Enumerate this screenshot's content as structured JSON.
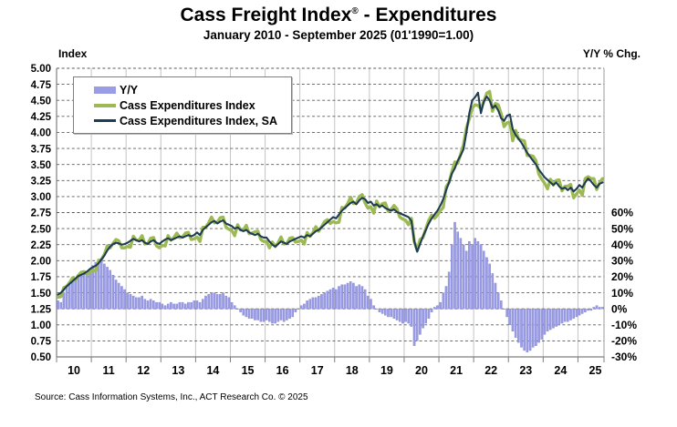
{
  "title": {
    "main": "Cass Freight Index",
    "reg": "®",
    "rest": " - Expenditures"
  },
  "subtitle": "January 2010 - September 2025 (01'1990=1.00)",
  "left_axis_corner_label": "Index",
  "right_axis_corner_label": "Y/Y % Chg.",
  "source": "Source: Cass Information Systems, Inc., ACT Research Co. © 2025",
  "legend": {
    "items": [
      {
        "label": "Y/Y",
        "type": "bar",
        "color": "#9a9ce6"
      },
      {
        "label": "Cass Expenditures Index",
        "type": "line",
        "color": "#9cb953"
      },
      {
        "label": "Cass Expenditures Index, SA",
        "type": "line",
        "color": "#1e3d52"
      }
    ]
  },
  "chart_data": {
    "type": "combo",
    "frequency": "monthly",
    "x_start": "2010-01",
    "x_end": "2025-09",
    "x_tick_labels": [
      "10",
      "11",
      "12",
      "13",
      "14",
      "15",
      "16",
      "17",
      "18",
      "19",
      "20",
      "21",
      "22",
      "23",
      "24",
      "25"
    ],
    "left_axis": {
      "label": "Index",
      "min": 0.5,
      "max": 5.0,
      "step": 0.25,
      "tick_labels": [
        "5.00",
        "4.75",
        "4.50",
        "4.25",
        "4.00",
        "3.75",
        "3.50",
        "3.25",
        "3.00",
        "2.75",
        "2.50",
        "2.25",
        "2.00",
        "1.75",
        "1.50",
        "1.25",
        "1.00",
        "0.75",
        "0.50"
      ]
    },
    "right_axis": {
      "label": "Y/Y % Chg.",
      "tick_labels": [
        "60%",
        "50%",
        "40%",
        "30%",
        "20%",
        "10%",
        "0%",
        "-10%",
        "-20%",
        "-30%"
      ],
      "percent_max": 60,
      "percent_min": -30,
      "percent_step": 10,
      "zero_percent_at_index_value": 1.25,
      "index_units_per_10pct": 0.25
    },
    "grid": {
      "horizontal": "dashed",
      "vertical": "solid-light"
    },
    "legend_position": "top-left-inside",
    "series": [
      {
        "name": "Y/Y",
        "type": "bar",
        "axis": "right",
        "unit": "%",
        "color": "#9a9ce6",
        "values": [
          5,
          4,
          10,
          13,
          15,
          17,
          18,
          20,
          21,
          22,
          23,
          25,
          27,
          29,
          31,
          30,
          28,
          26,
          24,
          21,
          18,
          16,
          14,
          12,
          10,
          9,
          8,
          7,
          7,
          8,
          6,
          5,
          6,
          5,
          4,
          4,
          3,
          2,
          3,
          4,
          3,
          3,
          4,
          4,
          3,
          4,
          4,
          5,
          5,
          4,
          6,
          8,
          9,
          10,
          10,
          9,
          9,
          10,
          8,
          7,
          4,
          2,
          0,
          -2,
          -4,
          -5,
          -6,
          -6,
          -7,
          -7,
          -8,
          -8,
          -7,
          -8,
          -9,
          -9,
          -8,
          -7,
          -8,
          -7,
          -6,
          -5,
          -2,
          0,
          2,
          3,
          5,
          6,
          7,
          7,
          8,
          9,
          10,
          11,
          12,
          13,
          12,
          14,
          15,
          15,
          16,
          17,
          16,
          14,
          15,
          14,
          12,
          8,
          6,
          2,
          0,
          -2,
          -3,
          -4,
          -5,
          -5,
          -6,
          -7,
          -8,
          -9,
          -8,
          -9,
          -11,
          -23,
          -20,
          -16,
          -12,
          -9,
          -6,
          -2,
          1,
          2,
          4,
          10,
          14,
          23,
          40,
          54,
          48,
          44,
          40,
          36,
          42,
          40,
          44,
          42,
          40,
          36,
          32,
          28,
          22,
          16,
          10,
          5,
          0,
          -5,
          -10,
          -14,
          -18,
          -21,
          -24,
          -26,
          -27,
          -26,
          -24,
          -23,
          -21,
          -19,
          -16,
          -14,
          -13,
          -12,
          -11,
          -10,
          -9,
          -8,
          -8,
          -7,
          -6,
          -5,
          -4,
          -3,
          -2,
          -1,
          -1,
          1,
          2,
          1,
          1
        ]
      },
      {
        "name": "Cass Expenditures Index",
        "type": "line",
        "axis": "left",
        "color": "#9cb953",
        "values": [
          1.43,
          1.44,
          1.58,
          1.6,
          1.66,
          1.73,
          1.7,
          1.77,
          1.82,
          1.83,
          1.79,
          1.82,
          1.85,
          1.84,
          2.0,
          2.02,
          2.1,
          2.23,
          2.2,
          2.27,
          2.33,
          2.31,
          2.2,
          2.2,
          2.22,
          2.21,
          2.38,
          2.32,
          2.32,
          2.39,
          2.26,
          2.27,
          2.35,
          2.36,
          2.23,
          2.2,
          2.24,
          2.23,
          2.39,
          2.32,
          2.36,
          2.43,
          2.36,
          2.37,
          2.43,
          2.44,
          2.33,
          2.34,
          2.37,
          2.3,
          2.52,
          2.52,
          2.59,
          2.68,
          2.59,
          2.6,
          2.67,
          2.68,
          2.52,
          2.49,
          2.47,
          2.39,
          2.56,
          2.48,
          2.48,
          2.55,
          2.42,
          2.43,
          2.45,
          2.46,
          2.33,
          2.3,
          2.3,
          2.2,
          2.29,
          2.22,
          2.28,
          2.37,
          2.26,
          2.27,
          2.35,
          2.36,
          2.29,
          2.3,
          2.32,
          2.26,
          2.44,
          2.38,
          2.44,
          2.53,
          2.46,
          2.53,
          2.61,
          2.64,
          2.58,
          2.61,
          2.59,
          2.6,
          2.83,
          2.82,
          2.89,
          2.99,
          2.89,
          2.9,
          3.0,
          3.03,
          2.9,
          2.82,
          2.84,
          2.74,
          2.93,
          2.84,
          2.89,
          2.9,
          2.77,
          2.8,
          2.86,
          2.81,
          2.68,
          2.65,
          2.63,
          2.56,
          2.66,
          2.3,
          2.16,
          2.33,
          2.36,
          2.5,
          2.63,
          2.71,
          2.66,
          2.71,
          2.78,
          2.83,
          3.15,
          3.22,
          3.39,
          3.54,
          3.52,
          3.66,
          3.81,
          4.07,
          4.21,
          4.38,
          4.43,
          4.42,
          4.37,
          4.48,
          4.61,
          4.64,
          4.33,
          4.45,
          4.43,
          4.29,
          4.09,
          4.15,
          4.16,
          3.87,
          4.03,
          3.9,
          3.88,
          3.87,
          3.64,
          3.64,
          3.63,
          3.56,
          3.35,
          3.27,
          3.21,
          3.12,
          3.27,
          3.18,
          3.25,
          3.26,
          3.09,
          3.16,
          3.16,
          3.19,
          2.98,
          3.04,
          3.1,
          3.02,
          3.28,
          3.31,
          3.28,
          3.28,
          3.11,
          3.22,
          3.28
        ]
      },
      {
        "name": "Cass Expenditures Index, SA",
        "type": "line",
        "axis": "left",
        "color": "#1e3d52",
        "values": [
          1.47,
          1.5,
          1.55,
          1.6,
          1.64,
          1.68,
          1.72,
          1.76,
          1.78,
          1.8,
          1.83,
          1.87,
          1.9,
          1.92,
          1.96,
          2.02,
          2.08,
          2.16,
          2.22,
          2.26,
          2.28,
          2.27,
          2.25,
          2.26,
          2.28,
          2.31,
          2.34,
          2.32,
          2.3,
          2.32,
          2.28,
          2.26,
          2.3,
          2.32,
          2.28,
          2.26,
          2.3,
          2.33,
          2.35,
          2.32,
          2.34,
          2.36,
          2.38,
          2.36,
          2.38,
          2.4,
          2.38,
          2.4,
          2.44,
          2.4,
          2.48,
          2.52,
          2.56,
          2.6,
          2.62,
          2.58,
          2.61,
          2.63,
          2.58,
          2.56,
          2.54,
          2.5,
          2.52,
          2.48,
          2.46,
          2.48,
          2.44,
          2.42,
          2.4,
          2.42,
          2.38,
          2.36,
          2.36,
          2.3,
          2.25,
          2.22,
          2.26,
          2.3,
          2.28,
          2.26,
          2.3,
          2.32,
          2.34,
          2.36,
          2.38,
          2.36,
          2.4,
          2.38,
          2.42,
          2.46,
          2.48,
          2.52,
          2.56,
          2.6,
          2.64,
          2.68,
          2.66,
          2.72,
          2.78,
          2.82,
          2.86,
          2.9,
          2.92,
          2.88,
          2.94,
          2.98,
          2.96,
          2.9,
          2.92,
          2.86,
          2.88,
          2.84,
          2.86,
          2.82,
          2.8,
          2.78,
          2.8,
          2.76,
          2.74,
          2.72,
          2.7,
          2.68,
          2.62,
          2.3,
          2.14,
          2.26,
          2.38,
          2.48,
          2.58,
          2.66,
          2.72,
          2.78,
          2.86,
          2.96,
          3.1,
          3.22,
          3.36,
          3.44,
          3.56,
          3.64,
          3.74,
          4.0,
          4.3,
          4.5,
          4.55,
          4.62,
          4.3,
          4.48,
          4.56,
          4.5,
          4.38,
          4.42,
          4.34,
          4.22,
          4.18,
          4.26,
          4.28,
          4.05,
          3.96,
          3.9,
          3.84,
          3.76,
          3.68,
          3.62,
          3.56,
          3.5,
          3.42,
          3.36,
          3.3,
          3.26,
          3.22,
          3.18,
          3.22,
          3.16,
          3.12,
          3.14,
          3.1,
          3.14,
          3.08,
          3.12,
          3.18,
          3.14,
          3.22,
          3.28,
          3.24,
          3.18,
          3.14,
          3.2,
          3.22
        ]
      }
    ]
  }
}
